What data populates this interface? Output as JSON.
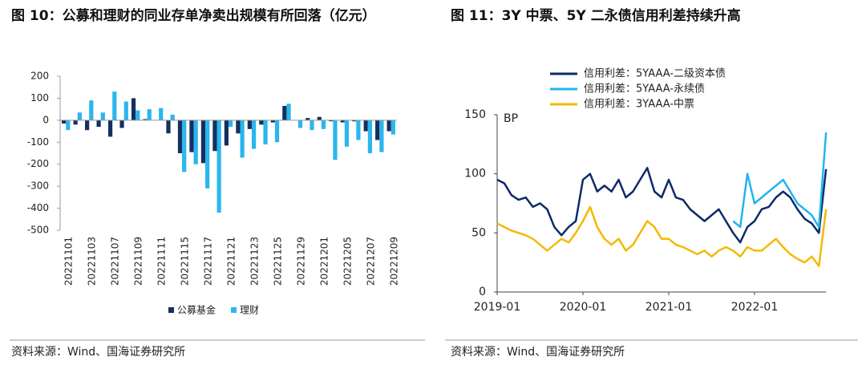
{
  "chart_data": [
    {
      "type": "bar",
      "title": "图 10：公募和理财的同业存单净卖出规模有所回落（亿元）",
      "source": "资料来源：Wind、国海证券研究所",
      "categories": [
        "20221101",
        null,
        "20221103",
        null,
        "20221107",
        null,
        "20221109",
        null,
        "20221111",
        null,
        "20221115",
        null,
        "20221117",
        null,
        "20221121",
        null,
        "20221123",
        null,
        "20221125",
        null,
        "20221129",
        null,
        "20221201",
        null,
        "20221205",
        null,
        "20221207",
        null,
        "20221209"
      ],
      "series": [
        {
          "name": "公募基金",
          "color": "#15305f",
          "values": [
            -15,
            -20,
            -45,
            -30,
            -75,
            -35,
            100,
            5,
            0,
            -60,
            -150,
            -145,
            -195,
            -140,
            -115,
            -60,
            -40,
            -20,
            -10,
            65,
            0,
            10,
            15,
            -5,
            -10,
            -5,
            -50,
            -90,
            -50
          ]
        },
        {
          "name": "理财",
          "color": "#2ab6ee",
          "values": [
            -45,
            35,
            90,
            35,
            130,
            85,
            45,
            50,
            55,
            25,
            -235,
            -200,
            -310,
            -420,
            -30,
            -170,
            -130,
            -110,
            -100,
            75,
            -35,
            -45,
            -40,
            -180,
            -120,
            -90,
            -150,
            -145,
            -65
          ]
        }
      ],
      "ylim": [
        -500,
        200
      ],
      "yticks": [
        -500,
        -400,
        -300,
        -200,
        -100,
        0,
        100,
        200
      ],
      "legend": "bottom"
    },
    {
      "type": "line",
      "title": "图 11：3Y 中票、5Y 二永债信用利差持续升高",
      "source": "资料来源：Wind、国海证券研究所",
      "y_label": "BP",
      "x": [
        "2019-01",
        "2019-02",
        "2019-03",
        "2019-04",
        "2019-05",
        "2019-06",
        "2019-07",
        "2019-08",
        "2019-09",
        "2019-10",
        "2019-11",
        "2019-12",
        "2020-01",
        "2020-02",
        "2020-03",
        "2020-04",
        "2020-05",
        "2020-06",
        "2020-07",
        "2020-08",
        "2020-09",
        "2020-10",
        "2020-11",
        "2020-12",
        "2021-01",
        "2021-02",
        "2021-03",
        "2021-04",
        "2021-05",
        "2021-06",
        "2021-07",
        "2021-08",
        "2021-09",
        "2021-10",
        "2021-11",
        "2021-12",
        "2022-01",
        "2022-02",
        "2022-03",
        "2022-04",
        "2022-05",
        "2022-06",
        "2022-07",
        "2022-08",
        "2022-09",
        "2022-10",
        "2022-11"
      ],
      "xticks": [
        "2019-01",
        "2020-01",
        "2021-01",
        "2022-01"
      ],
      "series": [
        {
          "name": "信用利差：5YAAA-二级资本债",
          "color": "#0e2a6a",
          "values": [
            95,
            92,
            82,
            78,
            80,
            72,
            75,
            70,
            55,
            48,
            55,
            60,
            95,
            100,
            85,
            90,
            85,
            95,
            80,
            85,
            95,
            105,
            85,
            80,
            95,
            80,
            78,
            70,
            65,
            60,
            65,
            70,
            60,
            50,
            42,
            55,
            60,
            70,
            72,
            80,
            85,
            80,
            70,
            62,
            58,
            50,
            104
          ]
        },
        {
          "name": "信用利差：5YAAA-永续债",
          "color": "#22b5ec",
          "values": [
            null,
            null,
            null,
            null,
            null,
            null,
            null,
            null,
            null,
            null,
            null,
            null,
            null,
            null,
            null,
            null,
            null,
            null,
            null,
            null,
            null,
            null,
            null,
            null,
            null,
            null,
            null,
            null,
            null,
            null,
            null,
            null,
            null,
            60,
            55,
            100,
            75,
            80,
            85,
            90,
            95,
            85,
            75,
            70,
            65,
            55,
            135
          ]
        },
        {
          "name": "信用利差：3YAAA-中票",
          "color": "#f5b800",
          "values": [
            58,
            55,
            52,
            50,
            48,
            45,
            40,
            35,
            40,
            45,
            42,
            50,
            60,
            72,
            55,
            45,
            40,
            45,
            35,
            40,
            50,
            60,
            55,
            45,
            45,
            40,
            38,
            35,
            32,
            35,
            30,
            35,
            38,
            35,
            30,
            38,
            35,
            35,
            40,
            45,
            38,
            32,
            28,
            25,
            30,
            22,
            70
          ]
        }
      ],
      "ylim": [
        0,
        150
      ],
      "yticks": [
        0,
        50,
        100,
        150
      ],
      "legend": "top-left"
    }
  ]
}
